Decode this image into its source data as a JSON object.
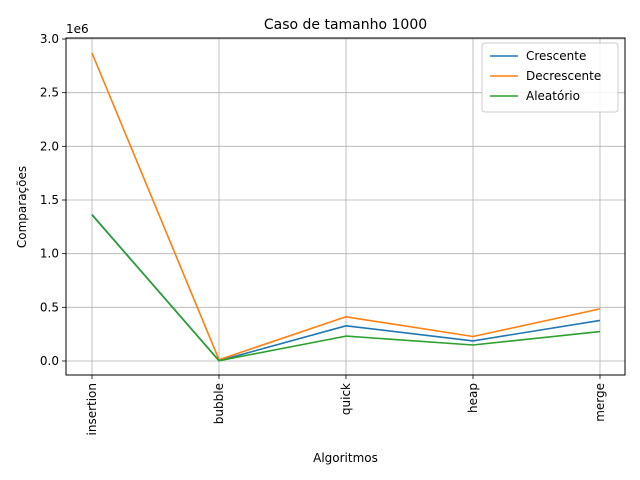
{
  "chart_data": {
    "type": "line",
    "title": "Caso  de tamanho 1000",
    "xlabel": "Algoritmos",
    "ylabel": "Comparações",
    "y_offset_label": "1e6",
    "categories": [
      "insertion",
      "bubble",
      "quick",
      "heap",
      "merge"
    ],
    "ylim": [
      -140000,
      3000000
    ],
    "yticks": [
      0,
      500000,
      1000000,
      1500000,
      2000000,
      2500000,
      3000000
    ],
    "ytick_labels": [
      "0.0",
      "0.5",
      "1.0",
      "1.5",
      "2.0",
      "2.5",
      "3.0"
    ],
    "grid": true,
    "legend_position": "top-right",
    "series": [
      {
        "name": "Crescente",
        "color": "#1f77b4",
        "values": [
          1365000,
          3000,
          328000,
          187000,
          378000
        ]
      },
      {
        "name": "Decrescente",
        "color": "#ff7f0e",
        "values": [
          2870000,
          12000,
          412000,
          228000,
          485000
        ]
      },
      {
        "name": "Aleatório",
        "color": "#2ca02c",
        "values": [
          1360000,
          3000,
          232000,
          149000,
          274000
        ]
      }
    ]
  }
}
